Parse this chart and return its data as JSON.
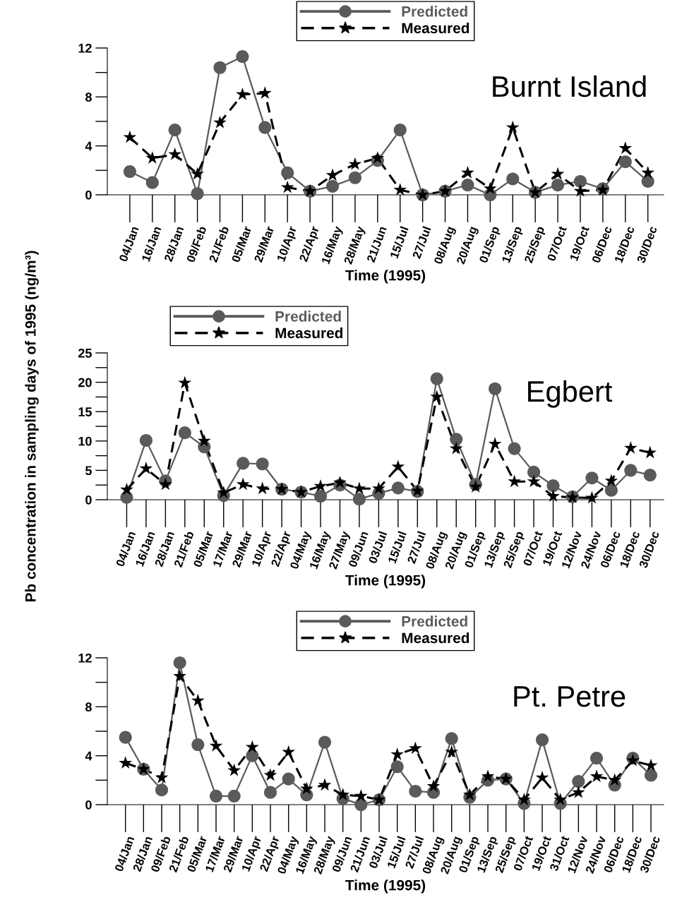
{
  "chart_data": [
    {
      "type": "line",
      "title": "Burnt Island",
      "xlabel": "Time (1995)",
      "legend": "top",
      "grid": false,
      "categories": [
        "04/Jan",
        "16/Jan",
        "28/Jan",
        "09/Feb",
        "21/Feb",
        "05/Mar",
        "29/Mar",
        "10/Apr",
        "22/Apr",
        "16/May",
        "28/May",
        "21/Jun",
        "15/Jul",
        "27/Jul",
        "08/Aug",
        "20/Aug",
        "01/Sep",
        "13/Sep",
        "25/Sep",
        "07/Oct",
        "19/Oct",
        "06/Dec",
        "18/Dec",
        "30/Dec"
      ],
      "ylim": [
        0,
        12
      ],
      "yticks": [
        0,
        4,
        8,
        12
      ],
      "series": [
        {
          "name": "Predicted",
          "color": "#5a5a5a",
          "marker": "circle",
          "line_style": "solid",
          "values": [
            1.9,
            1.0,
            5.3,
            0.1,
            10.4,
            11.3,
            5.5,
            1.8,
            0.3,
            0.7,
            1.4,
            2.8,
            5.3,
            0.0,
            0.3,
            0.8,
            0.0,
            1.3,
            0.2,
            0.8,
            1.1,
            0.5,
            2.7,
            1.1
          ]
        },
        {
          "name": "Measured",
          "color": "#000000",
          "marker": "star",
          "line_style": "dashed",
          "values": [
            4.7,
            3.0,
            3.3,
            1.7,
            5.9,
            8.2,
            8.3,
            0.6,
            0.3,
            1.6,
            2.5,
            3.0,
            0.4,
            0.0,
            0.3,
            1.8,
            0.5,
            5.5,
            0.2,
            1.7,
            0.3,
            0.4,
            3.8,
            1.8
          ]
        }
      ]
    },
    {
      "type": "line",
      "title": "Egbert",
      "xlabel": "Time (1995)",
      "ylabel": "Pb concentration in sampling days of 1995 (ng/m³)",
      "legend": "top left",
      "grid": false,
      "categories": [
        "04/Jan",
        "16/Jan",
        "28/Jan",
        "21/Feb",
        "05/Mar",
        "17/Mar",
        "29/Mar",
        "10/Apr",
        "22/Apr",
        "04/May",
        "16/May",
        "27/May",
        "09/Jun",
        "03/Jul",
        "15/Jul",
        "27/Jul",
        "08/Aug",
        "20/Aug",
        "01/Sep",
        "13/Sep",
        "25/Sep",
        "07/Oct",
        "19/Oct",
        "12/Nov",
        "24/Nov",
        "06/Dec",
        "18/Dec",
        "30/Dec"
      ],
      "ylim": [
        0,
        25
      ],
      "yticks": [
        0,
        5,
        10,
        15,
        20,
        25
      ],
      "series": [
        {
          "name": "Predicted",
          "color": "#5a5a5a",
          "marker": "circle",
          "line_style": "solid",
          "values": [
            0.4,
            10.1,
            3.2,
            11.4,
            9.0,
            0.7,
            6.2,
            6.1,
            1.8,
            1.3,
            0.6,
            2.5,
            0.1,
            1.1,
            2.0,
            1.4,
            20.6,
            10.3,
            2.6,
            18.9,
            8.7,
            4.7,
            2.4,
            0.5,
            3.7,
            1.6,
            5.0,
            4.2
          ]
        },
        {
          "name": "Measured",
          "color": "#000000",
          "marker": "star",
          "line_style": "dashed",
          "values": [
            1.7,
            5.3,
            2.6,
            19.9,
            10.0,
            1.2,
            2.6,
            1.9,
            1.8,
            1.3,
            2.3,
            2.9,
            1.9,
            1.9,
            5.6,
            1.5,
            17.5,
            8.7,
            2.2,
            9.5,
            3.1,
            3.1,
            0.6,
            0.4,
            0.3,
            3.2,
            8.8,
            8.0
          ]
        }
      ]
    },
    {
      "type": "line",
      "title": "Pt. Petre",
      "xlabel": "Time (1995)",
      "legend": "top",
      "grid": false,
      "categories": [
        "04/Jan",
        "28/Jan",
        "09/Feb",
        "21/Feb",
        "05/Mar",
        "17/Mar",
        "29/Mar",
        "10/Apr",
        "22/Apr",
        "04/May",
        "16/May",
        "28/May",
        "09/Jun",
        "21/Jun",
        "03/Jul",
        "15/Jul",
        "27/Jul",
        "08/Aug",
        "20/Aug",
        "01/Sep",
        "13/Sep",
        "25/Sep",
        "07/Oct",
        "19/Oct",
        "31/Oct",
        "12/Nov",
        "24/Nov",
        "06/Dec",
        "18/Dec",
        "30/Dec"
      ],
      "ylim": [
        0,
        12
      ],
      "yticks": [
        0,
        4,
        8,
        12
      ],
      "series": [
        {
          "name": "Predicted",
          "color": "#5a5a5a",
          "marker": "circle",
          "line_style": "solid",
          "values": [
            5.5,
            2.9,
            1.2,
            11.6,
            4.9,
            0.7,
            0.7,
            4.0,
            1.0,
            2.1,
            0.8,
            5.1,
            0.5,
            0.0,
            0.4,
            3.1,
            1.1,
            1.0,
            5.4,
            0.6,
            2.0,
            2.1,
            0.1,
            5.3,
            0.1,
            1.9,
            3.8,
            1.6,
            3.8,
            2.4
          ]
        },
        {
          "name": "Measured",
          "color": "#000000",
          "marker": "star",
          "line_style": "dashed",
          "values": [
            3.4,
            2.9,
            2.2,
            10.5,
            8.5,
            4.8,
            2.8,
            4.7,
            2.4,
            4.3,
            1.3,
            1.6,
            0.8,
            0.7,
            0.4,
            4.1,
            4.6,
            1.5,
            4.3,
            0.8,
            2.3,
            2.1,
            0.4,
            2.2,
            0.4,
            1.0,
            2.3,
            2.0,
            3.6,
            3.2
          ]
        }
      ]
    }
  ]
}
